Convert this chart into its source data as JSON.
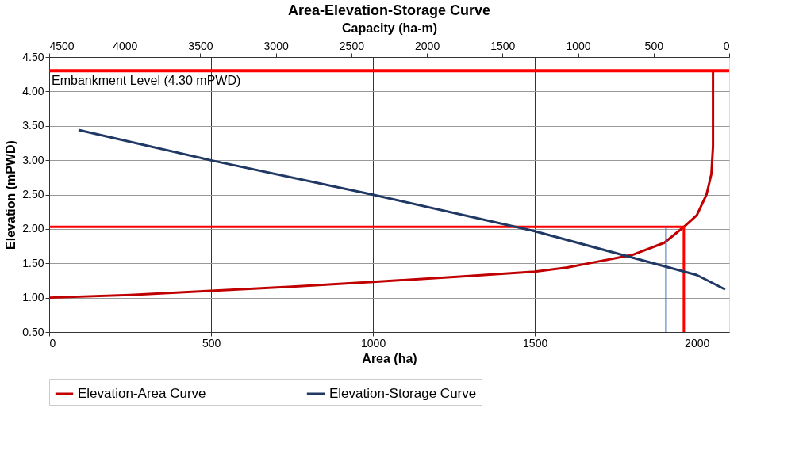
{
  "chart_data": {
    "type": "line",
    "title": "Area-Elevation-Storage Curve",
    "xlabel": "Area (ha)",
    "ylabel": "Elevation (mPWD)",
    "x2label": "Capacity (ha-m)",
    "xlim": [
      0,
      2100
    ],
    "xticks": [
      0,
      500,
      1000,
      1500,
      2000
    ],
    "x2lim": [
      4500,
      0
    ],
    "x2ticks": [
      4500,
      4000,
      3500,
      3000,
      2500,
      2000,
      1500,
      1000,
      500,
      0
    ],
    "ylim": [
      0.5,
      4.5
    ],
    "yticks": [
      {
        "value": 0.5,
        "label": "0.50"
      },
      {
        "value": 1.0,
        "label": "1.00"
      },
      {
        "value": 1.5,
        "label": "1.50"
      },
      {
        "value": 2.0,
        "label": "2.00"
      },
      {
        "value": 2.5,
        "label": "2.50"
      },
      {
        "value": 3.0,
        "label": "3.00"
      },
      {
        "value": 3.5,
        "label": "3.50"
      },
      {
        "value": 4.0,
        "label": "4.00"
      },
      {
        "value": 4.5,
        "label": "4.50"
      }
    ],
    "grid": true,
    "legend": "bottom",
    "line_style": "solid",
    "marker": "none",
    "series": [
      {
        "name": "Elevation-Area Curve",
        "color": "#c00000",
        "x": [
          0,
          250,
          500,
          750,
          1000,
          1250,
          1500,
          1600,
          1700,
          1800,
          1900,
          1960,
          2000,
          2030,
          2045,
          2050,
          2050,
          2050
        ],
        "values": [
          1.0,
          1.04,
          1.1,
          1.16,
          1.23,
          1.3,
          1.38,
          1.44,
          1.53,
          1.62,
          1.8,
          2.03,
          2.2,
          2.5,
          2.8,
          3.2,
          3.8,
          4.28
        ]
      },
      {
        "name": "Elevation-Storage Curve",
        "color": "#1f3864",
        "axis": "x2",
        "x": [
          4306,
          3434,
          2363,
          1292,
          215,
          27
        ],
        "values": [
          3.44,
          3.0,
          2.5,
          1.97,
          1.33,
          1.12
        ]
      },
      {
        "type": "line",
        "color": "#ff0000",
        "x": [
          0,
          1960,
          1960
        ],
        "values": [
          2.03,
          2.03,
          0.5
        ]
      },
      {
        "type": "line",
        "color": "#4472c4",
        "x": [
          1905,
          1905
        ],
        "values": [
          2.03,
          0.5
        ]
      }
    ],
    "ref_lines": [
      {
        "axis": "y",
        "value": 4.3,
        "label": "Embankment Level (4.30 mPWD)",
        "color": "#ff0000"
      }
    ]
  }
}
